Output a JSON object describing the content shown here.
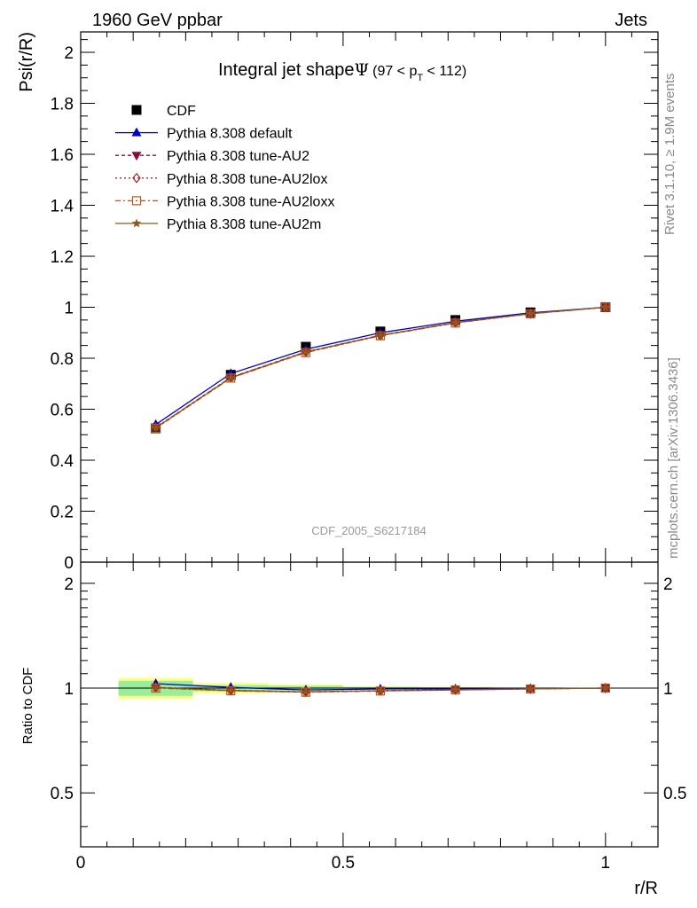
{
  "header": {
    "left": "1960 GeV ppbar",
    "right": "Jets"
  },
  "title": {
    "main": "Integral jet shape",
    "psi": "Ψ",
    "range_open": "(97 < p",
    "range_sub": "T",
    "range_close": " < 112)"
  },
  "side_text": {
    "rivet": "Rivet 3.1.10, ≥ 1.9M events",
    "mcplots": "mcplots.cern.ch [arXiv:1306.3436]"
  },
  "watermark": "CDF_2005_S6217184",
  "colors": {
    "cdf": "#000000",
    "default": "#0000cc",
    "au2": "#8b0a3a",
    "au2lox": "#a0262c",
    "au2loxx": "#c2541a",
    "au2m": "#8b5a1a",
    "band_inner": "#99ee99",
    "band_outer": "#ffff88"
  },
  "chart_data": [
    {
      "type": "line",
      "panel": "main",
      "ylabel": "Psi(r/R)",
      "xlim": [
        0,
        1.1
      ],
      "ylim": [
        0,
        2.08
      ],
      "yticks": [
        0,
        0.2,
        0.4,
        0.6,
        0.8,
        1,
        1.2,
        1.4,
        1.6,
        1.8,
        2
      ],
      "ytick_labels": [
        "0",
        "0.2",
        "0.4",
        "0.6",
        "0.8",
        "1",
        "1.2",
        "1.4",
        "1.6",
        "1.8",
        "2"
      ],
      "x": [
        0.143,
        0.286,
        0.429,
        0.571,
        0.714,
        0.857,
        1.0
      ],
      "legend_position": "top-left",
      "series": [
        {
          "name": "CDF",
          "values": [
            0.525,
            0.735,
            0.845,
            0.905,
            0.95,
            0.98,
            1.0
          ]
        },
        {
          "name": "Pythia 8.308 default",
          "values": [
            0.54,
            0.74,
            0.835,
            0.9,
            0.945,
            0.978,
            1.0
          ]
        },
        {
          "name": "Pythia 8.308 tune-AU2",
          "values": [
            0.528,
            0.725,
            0.825,
            0.89,
            0.94,
            0.975,
            1.0
          ]
        },
        {
          "name": "Pythia 8.308 tune-AU2lox",
          "values": [
            0.528,
            0.725,
            0.825,
            0.89,
            0.94,
            0.975,
            1.0
          ]
        },
        {
          "name": "Pythia 8.308 tune-AU2loxx",
          "values": [
            0.525,
            0.722,
            0.822,
            0.888,
            0.938,
            0.974,
            1.0
          ]
        },
        {
          "name": "Pythia 8.308 tune-AU2m",
          "values": [
            0.527,
            0.723,
            0.824,
            0.889,
            0.939,
            0.975,
            1.0
          ]
        }
      ]
    },
    {
      "type": "line",
      "panel": "ratio",
      "ylabel": "Ratio to CDF",
      "xlabel": "r/R",
      "xlim": [
        0,
        1.1
      ],
      "ylim": [
        0.35,
        2.3
      ],
      "yticks": [
        0.5,
        1,
        2
      ],
      "ytick_labels": [
        "0.5",
        "1",
        "2"
      ],
      "xticks": [
        0,
        0.5,
        1
      ],
      "xtick_labels": [
        "0",
        "0.5",
        "1"
      ],
      "x": [
        0.143,
        0.286,
        0.429,
        0.571,
        0.714,
        0.857,
        1.0
      ],
      "bands": {
        "bins": [
          [
            0.072,
            0.214
          ],
          [
            0.214,
            0.357
          ],
          [
            0.357,
            0.5
          ],
          [
            0.5,
            0.643
          ],
          [
            0.643,
            0.786
          ],
          [
            0.786,
            0.929
          ],
          [
            0.929,
            1.071
          ]
        ],
        "inner": [
          0.05,
          0.02,
          0.015,
          0.008,
          0.006,
          0.004,
          0.002
        ],
        "outer": [
          0.07,
          0.035,
          0.025,
          0.012,
          0.008,
          0.005,
          0.003
        ]
      },
      "series": [
        {
          "name": "Pythia 8.308 default",
          "values": [
            1.03,
            1.005,
            0.988,
            0.994,
            0.995,
            0.998,
            1.0
          ]
        },
        {
          "name": "Pythia 8.308 tune-AU2",
          "values": [
            1.005,
            0.985,
            0.976,
            0.983,
            0.989,
            0.995,
            1.0
          ]
        },
        {
          "name": "Pythia 8.308 tune-AU2lox",
          "values": [
            1.005,
            0.985,
            0.976,
            0.983,
            0.989,
            0.995,
            1.0
          ]
        },
        {
          "name": "Pythia 8.308 tune-AU2loxx",
          "values": [
            1.0,
            0.982,
            0.973,
            0.981,
            0.988,
            0.994,
            1.0
          ]
        },
        {
          "name": "Pythia 8.308 tune-AU2m",
          "values": [
            1.003,
            0.984,
            0.975,
            0.982,
            0.988,
            0.995,
            1.0
          ]
        }
      ]
    }
  ]
}
